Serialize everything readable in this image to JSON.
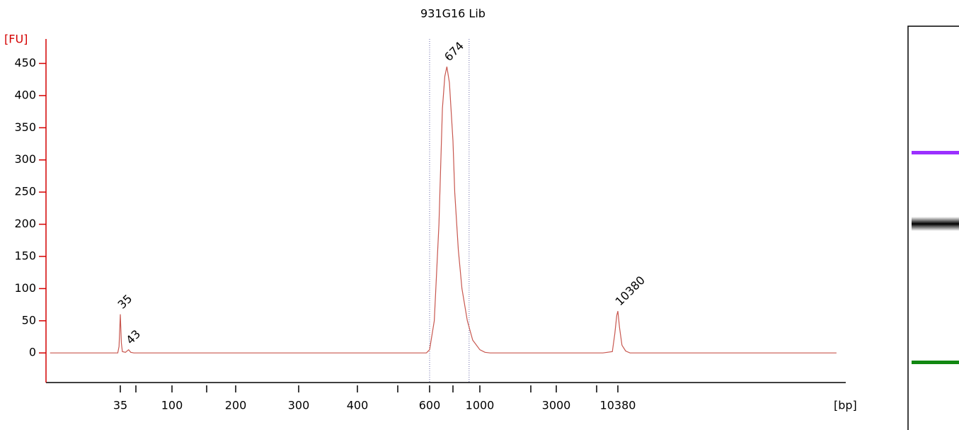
{
  "chart_data": {
    "type": "line",
    "title": "931G16 Lib",
    "y_label": "[FU]",
    "x_label": "[bp]",
    "ylim": [
      -46,
      488
    ],
    "yticks": [
      0,
      50,
      100,
      150,
      200,
      250,
      300,
      350,
      400,
      450
    ],
    "xticks": [
      35,
      {
        "value": 50,
        "label": null
      },
      100,
      {
        "value": 150,
        "label": null
      },
      200,
      300,
      400,
      {
        "value": 500,
        "label": null
      },
      600,
      {
        "value": 700,
        "label": null
      },
      1000,
      {
        "value": 2000,
        "label": null
      },
      3000,
      {
        "value": 7000,
        "label": null
      },
      10380
    ],
    "axis_color": "#d40000",
    "series": [
      {
        "name": "931G16 Lib",
        "color": "#c8574f",
        "x": [
          7,
          33,
          34,
          35,
          36,
          37,
          40,
          43,
          45,
          48,
          250,
          590,
          600,
          620,
          640,
          655,
          665,
          674,
          685,
          700,
          720,
          760,
          800,
          860,
          920,
          1000,
          1100,
          1200,
          8000,
          9500,
          9900,
          10200,
          10380,
          10700,
          11200,
          12000,
          13000,
          600000
        ],
        "values": [
          0,
          0,
          10,
          60,
          15,
          2,
          1,
          5,
          1,
          0,
          0,
          0,
          5,
          50,
          200,
          380,
          430,
          445,
          420,
          330,
          250,
          160,
          100,
          50,
          20,
          5,
          1,
          0,
          0,
          2,
          30,
          58,
          65,
          40,
          12,
          3,
          0,
          0
        ]
      }
    ],
    "peaks": [
      {
        "label": 35,
        "color": "#228b22"
      },
      {
        "label": 43,
        "color": "#000000"
      },
      {
        "label": 674,
        "color": "#000000"
      },
      {
        "label": 10380,
        "color": "#9b30ff"
      }
    ],
    "region_bounds": [
      600,
      880
    ]
  }
}
